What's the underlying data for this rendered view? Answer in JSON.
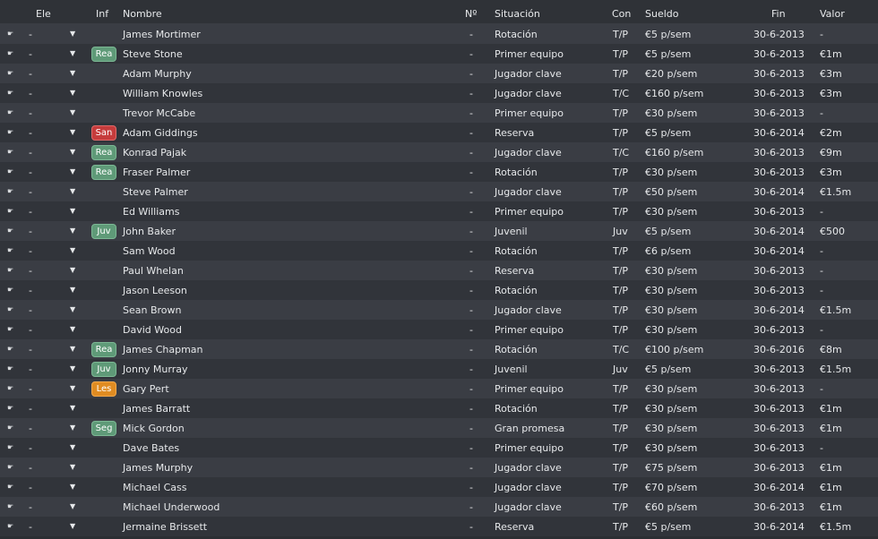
{
  "columns": {
    "ele": "Ele",
    "inf": "Inf",
    "nombre": "Nombre",
    "num": "Nº",
    "situacion": "Situación",
    "con": "Con",
    "sueldo": "Sueldo",
    "fin": "Fin",
    "valor": "Valor"
  },
  "row_icon": "pointer-hand-icon",
  "dropdown_icon": "chevron-down-icon",
  "badge_colors": {
    "Rea": "#5f9a78",
    "Juv": "#5f9a78",
    "Seg": "#5f9a78",
    "San": "#c63c3c",
    "Les": "#e08c22"
  },
  "rows": [
    {
      "ele": "-",
      "inf": "",
      "nombre": "James Mortimer",
      "num": "-",
      "situacion": "Rotación",
      "con": "T/P",
      "sueldo": "€5 p/sem",
      "fin": "30-6-2013",
      "valor": "-"
    },
    {
      "ele": "-",
      "inf": "Rea",
      "nombre": "Steve Stone",
      "num": "-",
      "situacion": "Primer equipo",
      "con": "T/P",
      "sueldo": "€5 p/sem",
      "fin": "30-6-2013",
      "valor": "€1m"
    },
    {
      "ele": "-",
      "inf": "",
      "nombre": "Adam Murphy",
      "num": "-",
      "situacion": "Jugador clave",
      "con": "T/P",
      "sueldo": "€20 p/sem",
      "fin": "30-6-2013",
      "valor": "€3m"
    },
    {
      "ele": "-",
      "inf": "",
      "nombre": "William Knowles",
      "num": "-",
      "situacion": "Jugador clave",
      "con": "T/C",
      "sueldo": "€160 p/sem",
      "fin": "30-6-2013",
      "valor": "€3m"
    },
    {
      "ele": "-",
      "inf": "",
      "nombre": "Trevor McCabe",
      "num": "-",
      "situacion": "Primer equipo",
      "con": "T/P",
      "sueldo": "€30 p/sem",
      "fin": "30-6-2013",
      "valor": "-"
    },
    {
      "ele": "-",
      "inf": "San",
      "nombre": "Adam Giddings",
      "num": "-",
      "situacion": "Reserva",
      "con": "T/P",
      "sueldo": "€5 p/sem",
      "fin": "30-6-2014",
      "valor": "€2m"
    },
    {
      "ele": "-",
      "inf": "Rea",
      "nombre": "Konrad Pajak",
      "num": "-",
      "situacion": "Jugador clave",
      "con": "T/C",
      "sueldo": "€160 p/sem",
      "fin": "30-6-2013",
      "valor": "€9m"
    },
    {
      "ele": "-",
      "inf": "Rea",
      "nombre": "Fraser Palmer",
      "num": "-",
      "situacion": "Rotación",
      "con": "T/P",
      "sueldo": "€30 p/sem",
      "fin": "30-6-2013",
      "valor": "€3m"
    },
    {
      "ele": "-",
      "inf": "",
      "nombre": "Steve Palmer",
      "num": "-",
      "situacion": "Jugador clave",
      "con": "T/P",
      "sueldo": "€50 p/sem",
      "fin": "30-6-2014",
      "valor": "€1.5m"
    },
    {
      "ele": "-",
      "inf": "",
      "nombre": "Ed Williams",
      "num": "-",
      "situacion": "Primer equipo",
      "con": "T/P",
      "sueldo": "€30 p/sem",
      "fin": "30-6-2013",
      "valor": "-"
    },
    {
      "ele": "-",
      "inf": "Juv",
      "nombre": "John Baker",
      "num": "-",
      "situacion": "Juvenil",
      "con": "Juv",
      "sueldo": "€5 p/sem",
      "fin": "30-6-2014",
      "valor": "€500"
    },
    {
      "ele": "-",
      "inf": "",
      "nombre": "Sam Wood",
      "num": "-",
      "situacion": "Rotación",
      "con": "T/P",
      "sueldo": "€6 p/sem",
      "fin": "30-6-2014",
      "valor": "-"
    },
    {
      "ele": "-",
      "inf": "",
      "nombre": "Paul Whelan",
      "num": "-",
      "situacion": "Reserva",
      "con": "T/P",
      "sueldo": "€30 p/sem",
      "fin": "30-6-2013",
      "valor": "-"
    },
    {
      "ele": "-",
      "inf": "",
      "nombre": "Jason Leeson",
      "num": "-",
      "situacion": "Rotación",
      "con": "T/P",
      "sueldo": "€30 p/sem",
      "fin": "30-6-2013",
      "valor": "-"
    },
    {
      "ele": "-",
      "inf": "",
      "nombre": "Sean Brown",
      "num": "-",
      "situacion": "Jugador clave",
      "con": "T/P",
      "sueldo": "€30 p/sem",
      "fin": "30-6-2014",
      "valor": "€1.5m"
    },
    {
      "ele": "-",
      "inf": "",
      "nombre": "David Wood",
      "num": "-",
      "situacion": "Primer equipo",
      "con": "T/P",
      "sueldo": "€30 p/sem",
      "fin": "30-6-2013",
      "valor": "-"
    },
    {
      "ele": "-",
      "inf": "Rea",
      "nombre": "James Chapman",
      "num": "-",
      "situacion": "Rotación",
      "con": "T/C",
      "sueldo": "€100 p/sem",
      "fin": "30-6-2016",
      "valor": "€8m"
    },
    {
      "ele": "-",
      "inf": "Juv",
      "nombre": "Jonny Murray",
      "num": "-",
      "situacion": "Juvenil",
      "con": "Juv",
      "sueldo": "€5 p/sem",
      "fin": "30-6-2013",
      "valor": "€1.5m"
    },
    {
      "ele": "-",
      "inf": "Les",
      "nombre": "Gary Pert",
      "num": "-",
      "situacion": "Primer equipo",
      "con": "T/P",
      "sueldo": "€30 p/sem",
      "fin": "30-6-2013",
      "valor": "-"
    },
    {
      "ele": "-",
      "inf": "",
      "nombre": "James Barratt",
      "num": "-",
      "situacion": "Rotación",
      "con": "T/P",
      "sueldo": "€30 p/sem",
      "fin": "30-6-2013",
      "valor": "€1m"
    },
    {
      "ele": "-",
      "inf": "Seg",
      "nombre": "Mick Gordon",
      "num": "-",
      "situacion": "Gran promesa",
      "con": "T/P",
      "sueldo": "€30 p/sem",
      "fin": "30-6-2013",
      "valor": "€1m"
    },
    {
      "ele": "-",
      "inf": "",
      "nombre": "Dave Bates",
      "num": "-",
      "situacion": "Primer equipo",
      "con": "T/P",
      "sueldo": "€30 p/sem",
      "fin": "30-6-2013",
      "valor": "-"
    },
    {
      "ele": "-",
      "inf": "",
      "nombre": "James Murphy",
      "num": "-",
      "situacion": "Jugador clave",
      "con": "T/P",
      "sueldo": "€75 p/sem",
      "fin": "30-6-2013",
      "valor": "€1m"
    },
    {
      "ele": "-",
      "inf": "",
      "nombre": "Michael Cass",
      "num": "-",
      "situacion": "Jugador clave",
      "con": "T/P",
      "sueldo": "€70 p/sem",
      "fin": "30-6-2014",
      "valor": "€1m"
    },
    {
      "ele": "-",
      "inf": "",
      "nombre": "Michael Underwood",
      "num": "-",
      "situacion": "Jugador clave",
      "con": "T/P",
      "sueldo": "€60 p/sem",
      "fin": "30-6-2013",
      "valor": "€1m"
    },
    {
      "ele": "-",
      "inf": "",
      "nombre": "Jermaine Brissett",
      "num": "-",
      "situacion": "Reserva",
      "con": "T/P",
      "sueldo": "€5 p/sem",
      "fin": "30-6-2014",
      "valor": "€1.5m"
    }
  ]
}
